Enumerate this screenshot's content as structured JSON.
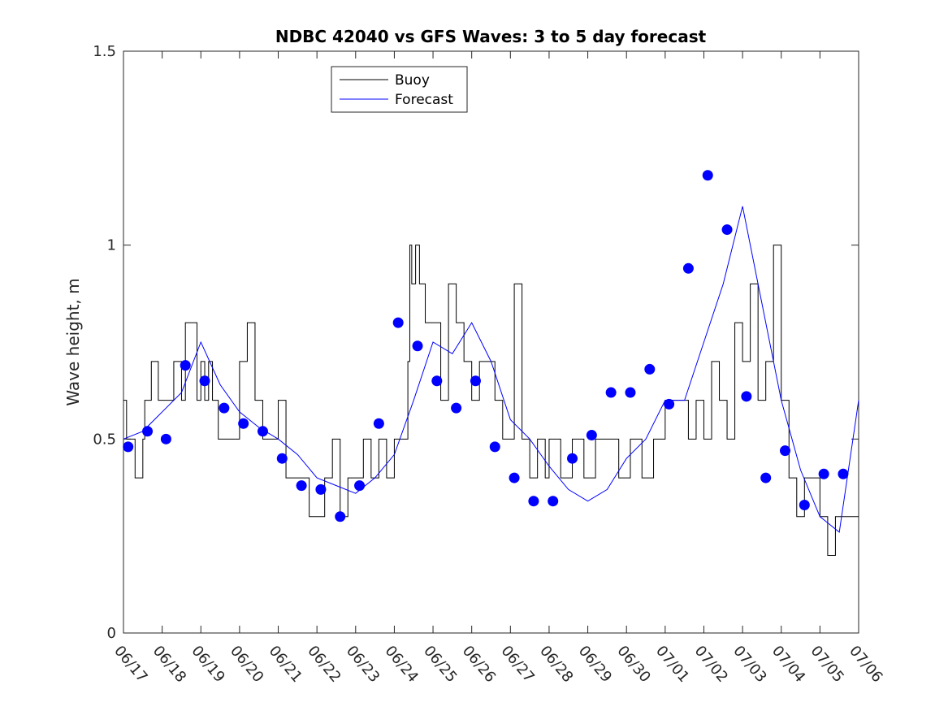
{
  "chart_data": {
    "type": "line",
    "title": "NDBC 42040 vs GFS Waves: 3 to 5 day forecast",
    "xlabel": "",
    "ylabel": "Wave height, m",
    "ylim": [
      0,
      1.5
    ],
    "xlim": [
      0,
      19
    ],
    "yticks": [
      "0",
      "0.5",
      "1",
      "1.5"
    ],
    "xticks": [
      "06/17",
      "06/18",
      "06/19",
      "06/20",
      "06/21",
      "06/22",
      "06/23",
      "06/24",
      "06/25",
      "06/26",
      "06/27",
      "06/28",
      "06/29",
      "06/30",
      "07/01",
      "07/02",
      "07/03",
      "07/04",
      "07/05",
      "07/06"
    ],
    "grid": false,
    "legend": {
      "placement": "top-left",
      "entries": [
        {
          "label": "Buoy",
          "color": "#000000"
        },
        {
          "label": "Forecast",
          "color": "#0000ff"
        }
      ]
    },
    "series": [
      {
        "name": "Buoy",
        "color": "#000000",
        "x": [
          0,
          0.08,
          0.12,
          0.3,
          0.5,
          0.55,
          0.7,
          0.72,
          0.9,
          1.0,
          1.3,
          1.5,
          1.6,
          1.7,
          1.9,
          2.0,
          2.1,
          2.2,
          2.3,
          2.45,
          2.6,
          2.8,
          3.0,
          3.2,
          3.4,
          3.6,
          3.8,
          4.0,
          4.2,
          4.4,
          4.6,
          4.8,
          5.0,
          5.2,
          5.4,
          5.6,
          5.8,
          6.0,
          6.2,
          6.4,
          6.6,
          6.8,
          7.0,
          7.2,
          7.35,
          7.4,
          7.45,
          7.55,
          7.65,
          7.8,
          8.0,
          8.2,
          8.4,
          8.6,
          8.8,
          9.0,
          9.2,
          9.4,
          9.6,
          9.8,
          9.95,
          10.0,
          10.1,
          10.3,
          10.5,
          10.7,
          10.9,
          11.0,
          11.3,
          11.6,
          11.9,
          12.2,
          12.5,
          12.8,
          13.1,
          13.4,
          13.7,
          14.0,
          14.3,
          14.6,
          14.8,
          15.0,
          15.2,
          15.4,
          15.6,
          15.8,
          16.0,
          16.2,
          16.4,
          16.6,
          16.8,
          17.0,
          17.2,
          17.4,
          17.6,
          17.8,
          18.0,
          18.2,
          18.4,
          18.6,
          18.8,
          19.0
        ],
        "y": [
          0.6,
          0.5,
          0.5,
          0.4,
          0.5,
          0.6,
          0.6,
          0.7,
          0.6,
          0.6,
          0.7,
          0.6,
          0.8,
          0.8,
          0.6,
          0.7,
          0.6,
          0.7,
          0.6,
          0.5,
          0.5,
          0.5,
          0.7,
          0.8,
          0.6,
          0.5,
          0.5,
          0.6,
          0.4,
          0.4,
          0.4,
          0.3,
          0.3,
          0.4,
          0.5,
          0.3,
          0.4,
          0.4,
          0.5,
          0.4,
          0.5,
          0.4,
          0.5,
          0.5,
          0.7,
          1.0,
          0.9,
          1.0,
          0.9,
          0.8,
          0.8,
          0.6,
          0.9,
          0.8,
          0.7,
          0.6,
          0.7,
          0.7,
          0.6,
          0.5,
          0.5,
          0.5,
          0.9,
          0.5,
          0.4,
          0.5,
          0.4,
          0.5,
          0.4,
          0.5,
          0.4,
          0.5,
          0.5,
          0.4,
          0.5,
          0.4,
          0.5,
          0.6,
          0.6,
          0.5,
          0.6,
          0.5,
          0.7,
          0.6,
          0.5,
          0.8,
          0.7,
          0.9,
          0.6,
          0.7,
          1.0,
          0.6,
          0.4,
          0.3,
          0.4,
          0.4,
          0.3,
          0.2,
          0.3,
          0.3,
          0.3,
          0.3
        ]
      },
      {
        "name": "Forecast",
        "color": "#0000ff",
        "x": [
          0,
          0.5,
          1.0,
          1.5,
          2.0,
          2.5,
          3.0,
          3.5,
          4.0,
          4.5,
          5.0,
          5.5,
          6.0,
          6.5,
          7.0,
          7.5,
          8.0,
          8.5,
          9.0,
          9.5,
          10.0,
          10.5,
          11.0,
          11.5,
          12.0,
          12.5,
          13.0,
          13.5,
          14.0,
          14.5,
          15.0,
          15.5,
          16.0,
          16.5,
          17.0,
          17.5,
          18.0,
          18.5,
          19.0
        ],
        "y": [
          0.5,
          0.52,
          0.57,
          0.62,
          0.75,
          0.64,
          0.57,
          0.53,
          0.5,
          0.46,
          0.4,
          0.38,
          0.36,
          0.4,
          0.46,
          0.6,
          0.75,
          0.72,
          0.8,
          0.7,
          0.55,
          0.5,
          0.43,
          0.37,
          0.34,
          0.37,
          0.45,
          0.5,
          0.6,
          0.6,
          0.75,
          0.9,
          1.1,
          0.85,
          0.6,
          0.42,
          0.3,
          0.26,
          0.6
        ]
      }
    ],
    "forecast_points": {
      "x": [
        0.12,
        0.62,
        1.1,
        1.6,
        2.1,
        2.6,
        3.1,
        3.6,
        4.1,
        4.6,
        5.1,
        5.6,
        6.1,
        6.6,
        7.1,
        7.6,
        8.1,
        8.6,
        9.1,
        9.6,
        10.1,
        10.6,
        11.1,
        11.6,
        12.1,
        12.6,
        13.1,
        13.6,
        14.1,
        14.6,
        15.1,
        15.6,
        16.1,
        16.6,
        17.1,
        17.6,
        18.1,
        18.6
      ],
      "y": [
        0.48,
        0.52,
        0.5,
        0.69,
        0.65,
        0.58,
        0.54,
        0.52,
        0.45,
        0.38,
        0.37,
        0.3,
        0.38,
        0.54,
        0.8,
        0.74,
        0.65,
        0.58,
        0.65,
        0.48,
        0.4,
        0.34,
        0.34,
        0.45,
        0.51,
        0.62,
        0.62,
        0.68,
        0.59,
        0.94,
        1.18,
        1.04,
        0.61,
        0.4,
        0.47,
        0.33,
        0.41,
        0.41
      ]
    }
  }
}
